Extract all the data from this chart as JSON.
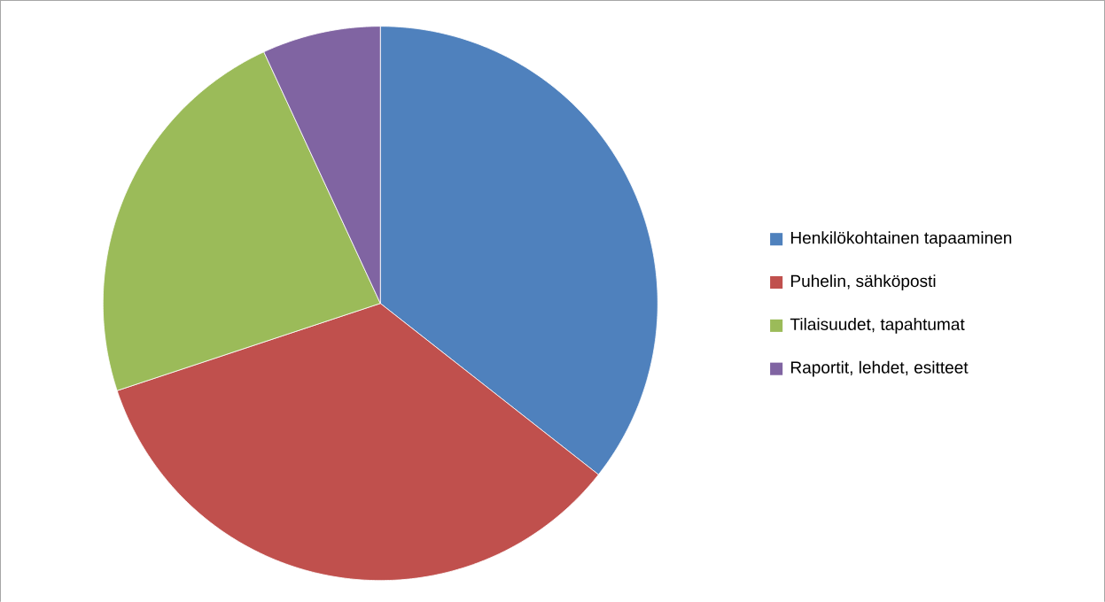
{
  "chart_data": {
    "type": "pie",
    "categories": [
      "Henkilökohtainen tapaaminen",
      "Puhelin, sähköposti",
      "Tilaisuudet, tapahtumat",
      "Raportit, lehdet, esitteet"
    ],
    "values": [
      35.6,
      34.3,
      23.2,
      6.9
    ],
    "colors": [
      "#4f81bd",
      "#c0504d",
      "#9bbb59",
      "#8064a2"
    ],
    "legend": "right"
  }
}
